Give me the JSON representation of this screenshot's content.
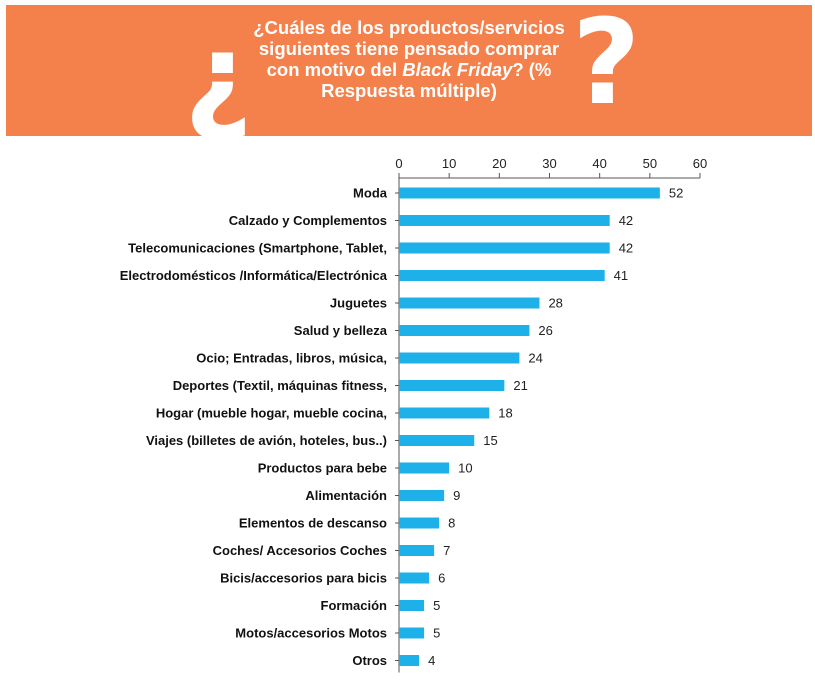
{
  "header": {
    "open_mark": "¿",
    "close_mark": "?",
    "title_part1": "¿Cuáles de los productos/servicios siguientes tiene pensado comprar con motivo del ",
    "title_emph": "Black Friday",
    "title_part2": "? (% Respuesta múltiple)"
  },
  "colors": {
    "banner": "#f4814c",
    "bar": "#1eb1e9",
    "axis": "#555555"
  },
  "chart_data": {
    "type": "bar",
    "orientation": "horizontal",
    "axis_position": "top",
    "xlim": [
      0,
      60
    ],
    "ticks": [
      0,
      10,
      20,
      30,
      40,
      50,
      60
    ],
    "grid": false,
    "categories": [
      "Moda",
      "Calzado y Complementos",
      "Telecomunicaciones (Smartphone, Tablet,",
      "Electrodomésticos /Informática/Electrónica",
      "Juguetes",
      "Salud y belleza",
      "Ocio; Entradas, libros, música,",
      "Deportes (Textil, máquinas fitness,",
      "Hogar (mueble hogar, mueble cocina,",
      "Viajes (billetes de avión, hoteles, bus..)",
      "Productos para bebe",
      "Alimentación",
      "Elementos de descanso",
      "Coches/ Accesorios Coches",
      "Bicis/accesorios para bicis",
      "Formación",
      "Motos/accesorios Motos",
      "Otros"
    ],
    "values": [
      52,
      42,
      42,
      41,
      28,
      26,
      24,
      21,
      18,
      15,
      10,
      9,
      8,
      7,
      6,
      5,
      5,
      4
    ]
  }
}
